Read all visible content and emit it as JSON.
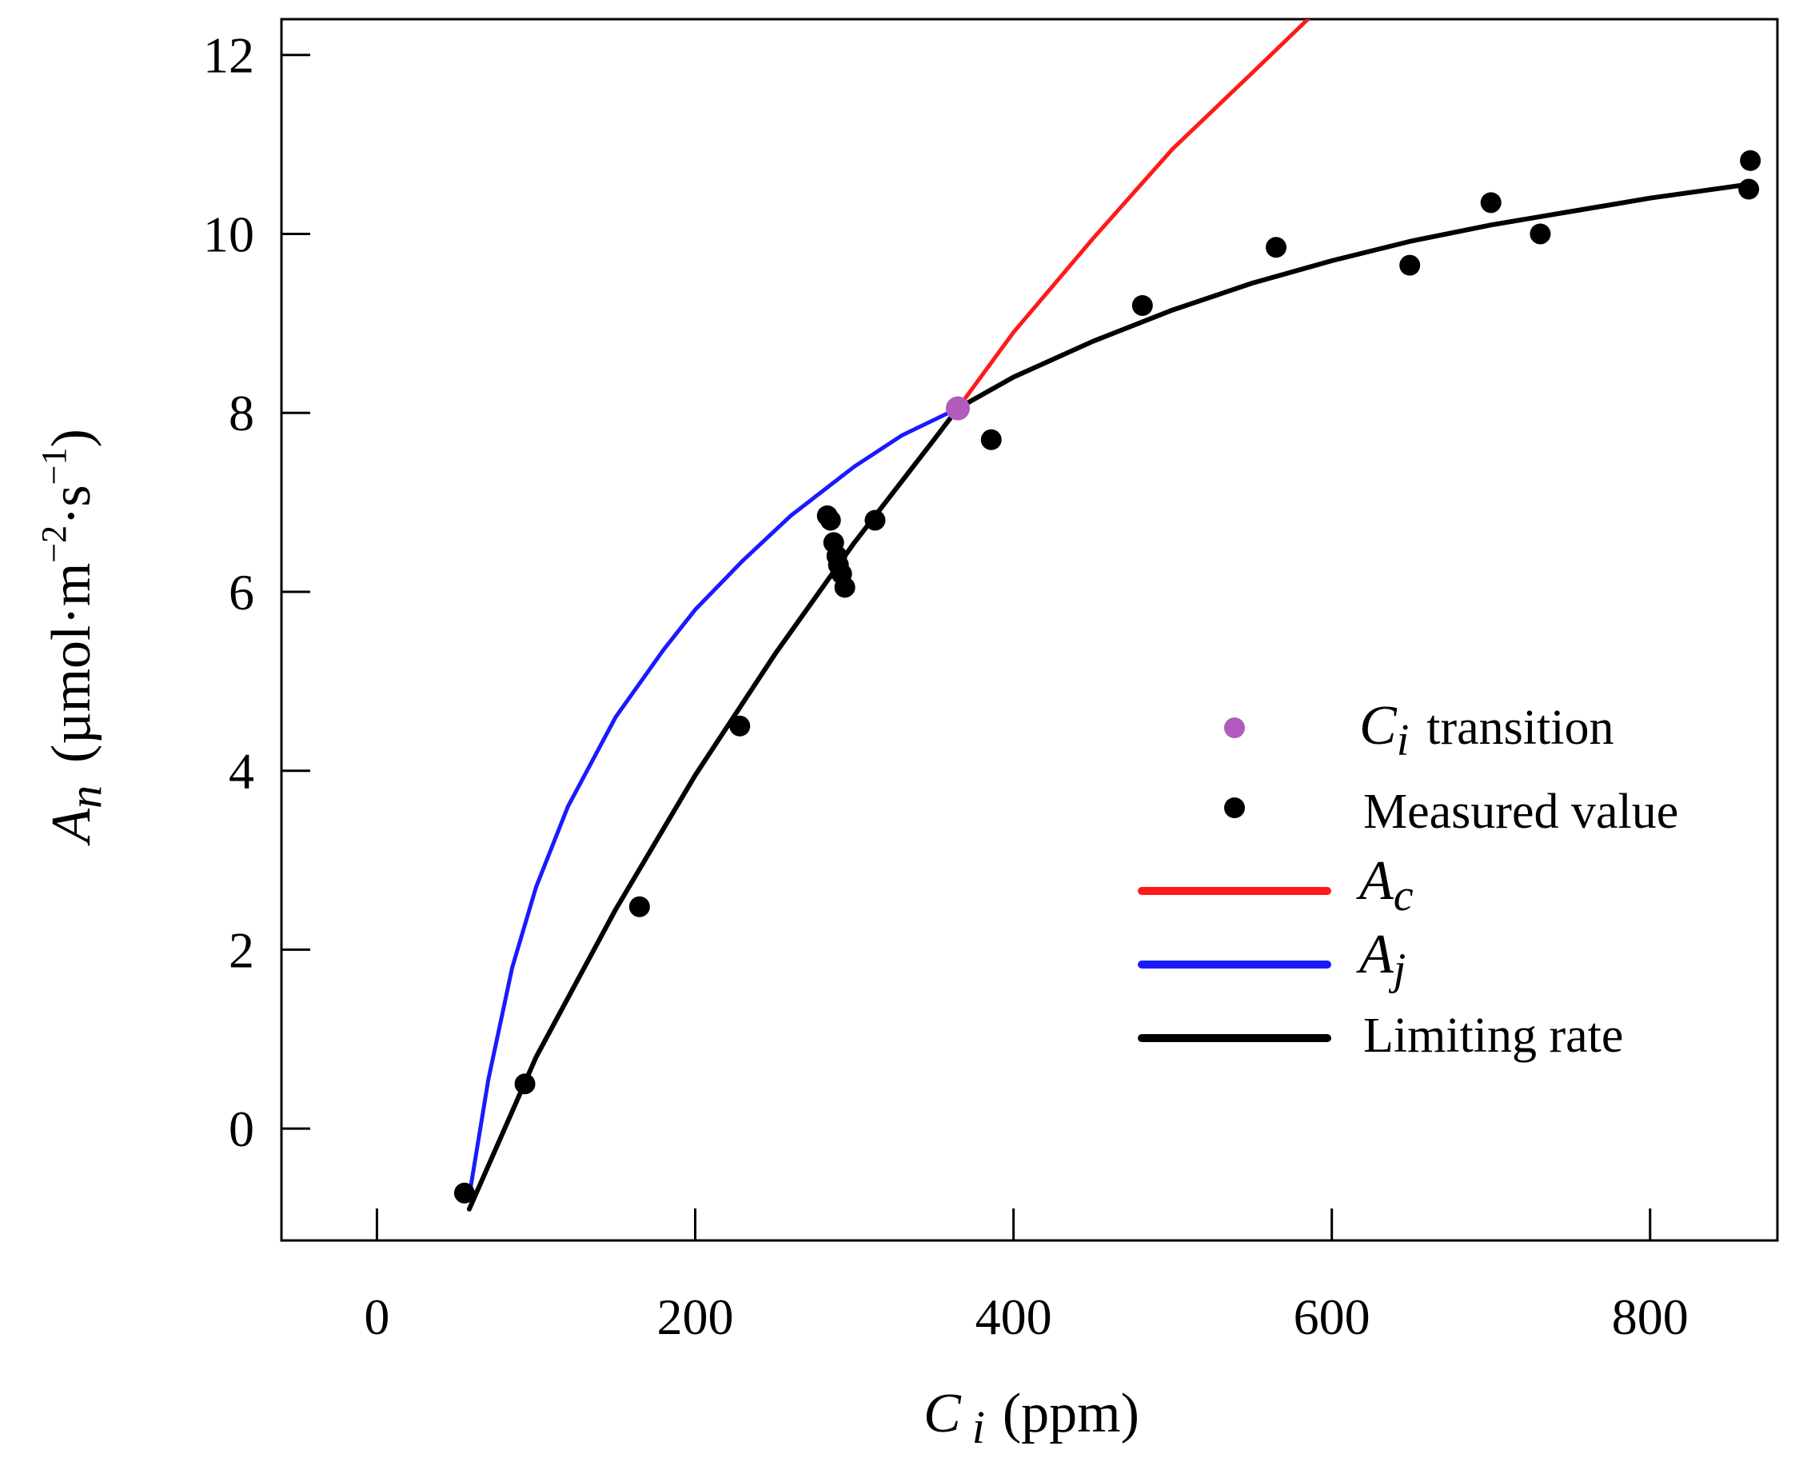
{
  "chart_data": {
    "type": "line",
    "xlabel": {
      "main": "C",
      "sub": "i",
      "unit": "(ppm)"
    },
    "ylabel": {
      "main": "A",
      "sub": "n",
      "unit_pre": "(µmol·m",
      "unit_exp1": "−2",
      "unit_mid": "·s",
      "unit_exp2": "−1",
      "unit_post": ")"
    },
    "xlim": [
      -60,
      880
    ],
    "ylim": [
      -1.25,
      12.4
    ],
    "xticks": [
      0,
      200,
      400,
      600,
      800
    ],
    "yticks": [
      0,
      2,
      4,
      6,
      8,
      10,
      12
    ],
    "colors": {
      "ac": "#ff1a1a",
      "aj": "#1a1aff",
      "limiting": "#000000",
      "transition": "#b15bbf",
      "measured": "#000000"
    },
    "series": [
      {
        "name": "A_c",
        "label_main": "A",
        "label_sub": "c",
        "color": "#ff1a1a",
        "x": [
          58,
          100,
          150,
          200,
          250,
          300,
          350,
          365,
          400,
          450,
          500,
          550,
          585
        ],
        "y": [
          -0.9,
          0.8,
          2.45,
          3.95,
          5.3,
          6.55,
          7.7,
          8.05,
          8.9,
          9.95,
          10.95,
          11.8,
          12.4
        ]
      },
      {
        "name": "A_j",
        "label_main": "A",
        "label_sub": "j",
        "color": "#1a1aff",
        "x": [
          58,
          70,
          85,
          100,
          120,
          150,
          180,
          200,
          230,
          260,
          300,
          330,
          365,
          400,
          450,
          500,
          550,
          600,
          650,
          700,
          750,
          800,
          860
        ],
        "y": [
          -0.75,
          0.55,
          1.8,
          2.7,
          3.6,
          4.6,
          5.35,
          5.8,
          6.35,
          6.85,
          7.4,
          7.75,
          8.05,
          8.4,
          8.8,
          9.15,
          9.45,
          9.7,
          9.92,
          10.1,
          10.25,
          10.4,
          10.55
        ]
      },
      {
        "name": "Limiting rate",
        "label": "Limiting rate",
        "color": "#000000",
        "x": [
          58,
          100,
          150,
          200,
          250,
          300,
          350,
          365,
          400,
          450,
          500,
          550,
          600,
          650,
          700,
          750,
          800,
          860
        ],
        "y": [
          -0.9,
          0.8,
          2.45,
          3.95,
          5.3,
          6.55,
          7.7,
          8.05,
          8.4,
          8.8,
          9.15,
          9.45,
          9.7,
          9.92,
          10.1,
          10.25,
          10.4,
          10.55
        ]
      }
    ],
    "measured_label": "Measured value",
    "measured": {
      "x": [
        55,
        93,
        165,
        228,
        283,
        285,
        287,
        289,
        290,
        292,
        294,
        313,
        386,
        481,
        565,
        649,
        700,
        731,
        862,
        863
      ],
      "y": [
        -0.72,
        0.5,
        2.48,
        4.5,
        6.85,
        6.8,
        6.55,
        6.4,
        6.3,
        6.2,
        6.05,
        6.8,
        7.7,
        9.2,
        9.85,
        9.65,
        10.35,
        10.0,
        10.5,
        10.82
      ]
    },
    "transition": {
      "label_main": "C",
      "label_sub": "i",
      "label_text": "transition",
      "x": 365,
      "y": 8.05
    }
  }
}
